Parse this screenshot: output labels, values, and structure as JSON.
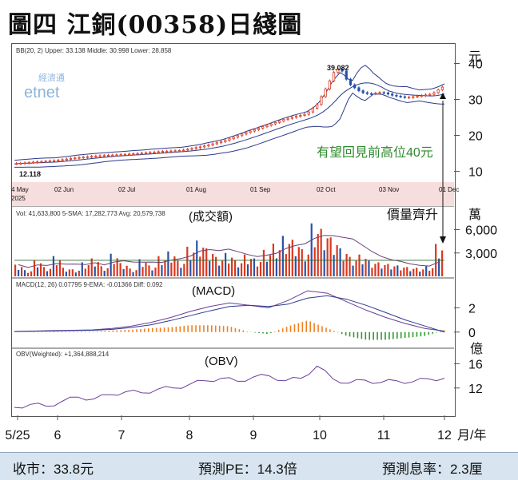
{
  "title": "圖四  江銅(00358)日綫圖",
  "chart_data": [
    {
      "type": "line",
      "panel": "price",
      "header": "BB(20, 2)  Upper: 33.138  Middle: 30.998  Lower: 28.858",
      "bb": {
        "upper": 33.138,
        "middle": 30.998,
        "lower": 28.858
      },
      "unit": "元",
      "yticks": [
        40,
        30,
        20,
        10
      ],
      "ylim": [
        7,
        43
      ],
      "xticks": [
        "4 May\n2025",
        "02 Jun",
        "02 Jul",
        "01 Aug",
        "01 Sep",
        "02 Oct",
        "03 Nov",
        "01 Dec"
      ],
      "annotations": [
        "39.082",
        "12.118",
        "有望回見前高位40元"
      ],
      "watermark": [
        "經濟通",
        "etnet"
      ],
      "close_series": [
        {
          "x": 0,
          "y": 12.1
        },
        {
          "x": 10,
          "y": 12.6
        },
        {
          "x": 20,
          "y": 13.0
        },
        {
          "x": 30,
          "y": 13.8
        },
        {
          "x": 40,
          "y": 14.3
        },
        {
          "x": 50,
          "y": 14.6
        },
        {
          "x": 60,
          "y": 15.0
        },
        {
          "x": 70,
          "y": 15.5
        },
        {
          "x": 80,
          "y": 15.8
        },
        {
          "x": 90,
          "y": 16.9
        },
        {
          "x": 100,
          "y": 18.4
        },
        {
          "x": 110,
          "y": 20.6
        },
        {
          "x": 120,
          "y": 22.6
        },
        {
          "x": 130,
          "y": 24.6
        },
        {
          "x": 140,
          "y": 26.0
        },
        {
          "x": 145,
          "y": 28.6
        },
        {
          "x": 150,
          "y": 34.0
        },
        {
          "x": 153,
          "y": 37.5
        },
        {
          "x": 156,
          "y": 39.0
        },
        {
          "x": 160,
          "y": 34.5
        },
        {
          "x": 166,
          "y": 32.0
        },
        {
          "x": 170,
          "y": 31.5
        },
        {
          "x": 176,
          "y": 32.0
        },
        {
          "x": 182,
          "y": 31.0
        },
        {
          "x": 188,
          "y": 30.5
        },
        {
          "x": 194,
          "y": 31.0
        },
        {
          "x": 200,
          "y": 31.5
        },
        {
          "x": 206,
          "y": 33.8
        }
      ]
    },
    {
      "type": "bar",
      "panel": "volume",
      "header": "Vol: 41,633,800  5-SMA: 17,282,773  Avg: 20,579,738",
      "label": "(成交額)",
      "annotation": "價量齊升",
      "unit": "萬",
      "yticks": [
        6000,
        3000
      ],
      "ylim": [
        0,
        8000
      ],
      "values": [
        1500,
        800,
        2100,
        1200,
        2600,
        1100,
        900,
        1800,
        2300,
        1300,
        2900,
        1700,
        1000,
        2200,
        1400,
        2600,
        3200,
        2000,
        3800,
        4600,
        3600,
        2500,
        3000,
        2100,
        2800,
        2300,
        3400,
        4200,
        5200,
        4700,
        3500,
        6800,
        6100,
        5000,
        3600,
        2500,
        2800,
        2000,
        1800,
        1600,
        1400,
        1200,
        1100,
        1300,
        4163
      ]
    },
    {
      "type": "line",
      "panel": "macd",
      "header": "MACD(12, 26)  0.07795  9-EMA: -0.01366  Diff: 0.092",
      "label": "(MACD)",
      "yticks": [
        2,
        0
      ],
      "ylim": [
        -1.2,
        3.8
      ],
      "series": [
        {
          "name": "MACD",
          "values": [
            0.05,
            0.08,
            0.12,
            0.15,
            0.18,
            0.3,
            0.5,
            0.8,
            1.2,
            1.7,
            2.1,
            2.4,
            2.2,
            2.0,
            2.6,
            3.4,
            3.2,
            2.5,
            1.8,
            1.2,
            0.7,
            0.3,
            0.08
          ]
        },
        {
          "name": "9-EMA",
          "values": [
            0.03,
            0.06,
            0.09,
            0.12,
            0.15,
            0.22,
            0.38,
            0.6,
            0.95,
            1.35,
            1.75,
            2.1,
            2.2,
            2.1,
            2.3,
            2.8,
            3.0,
            2.7,
            2.2,
            1.6,
            1.0,
            0.5,
            -0.01
          ]
        }
      ]
    },
    {
      "type": "line",
      "panel": "obv",
      "header": "OBV(Weighted): +1,364,888,214",
      "label": "(OBV)",
      "unit": "億",
      "yticks": [
        16,
        12
      ],
      "ylim": [
        7.5,
        17.5
      ],
      "values": [
        8.8,
        9.3,
        9.0,
        9.8,
        10.5,
        10.2,
        10.9,
        11.4,
        11.2,
        11.8,
        12.0,
        12.6,
        13.2,
        13.6,
        13.1,
        13.8,
        14.0,
        13.2,
        13.6,
        15.6,
        13.5,
        12.8,
        13.3,
        12.9,
        13.2,
        13.0,
        13.5,
        13.6
      ]
    }
  ],
  "x_axis": {
    "labels": [
      "5/25",
      "6",
      "7",
      "8",
      "9",
      "10",
      "11",
      "12"
    ],
    "unit": "月/年"
  },
  "footer": {
    "close": "收市：33.8元",
    "pe": "預測PE：14.3倍",
    "yield": "預測息率：2.3厘"
  },
  "colors": {
    "up": "#d9381e",
    "down": "#2752a8",
    "band": "#2c3a8c",
    "annot": "#2e8b2e",
    "pink": "#f6dede",
    "osc_up": "#f08020",
    "osc_down": "#2e9a2e"
  }
}
